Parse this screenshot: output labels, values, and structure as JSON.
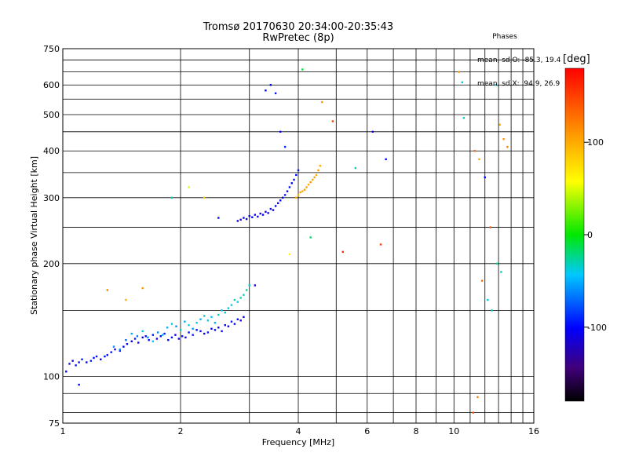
{
  "header": {
    "title_line1": "Tromsø 20170630 20:34:00-20:35:43",
    "title_line2": "RwPretec (8p)"
  },
  "stats": {
    "heading": "Phases",
    "line_o": "mean, sd,O: -85.3, 19.4",
    "line_x": "mean, sd,X:  94.9, 26.9"
  },
  "colorbar": {
    "label": "[deg]",
    "ticks": [
      {
        "value": 100,
        "label": "100"
      },
      {
        "value": 0,
        "label": "0"
      },
      {
        "value": -100,
        "label": "-100"
      }
    ],
    "range": [
      -180,
      180
    ]
  },
  "chart_data": {
    "type": "scatter",
    "xlabel": "Frequency [MHz]",
    "ylabel": "Stationary phase Virtual Height [km]",
    "xscale": "log",
    "yscale": "log",
    "xlim": [
      1,
      16
    ],
    "ylim": [
      75,
      750
    ],
    "x_ticks": [
      1,
      2,
      4,
      6,
      8,
      10,
      16
    ],
    "x_tick_labels": [
      "1",
      "2",
      "4",
      "6",
      "8",
      "10",
      "16"
    ],
    "y_ticks": [
      75,
      100,
      200,
      300,
      400,
      500,
      600,
      750
    ],
    "y_tick_labels": [
      "75",
      "100",
      "200",
      "300",
      "400",
      "500",
      "600",
      "750"
    ],
    "x_grid": [
      1,
      2,
      3,
      4,
      5,
      6,
      7,
      8,
      9,
      10,
      11,
      12,
      13,
      14,
      15,
      16
    ],
    "y_grid": [
      75,
      80,
      90,
      100,
      150,
      200,
      250,
      300,
      350,
      400,
      450,
      500,
      550,
      600,
      650,
      700,
      750
    ],
    "grid": true,
    "color_variable": "phase [deg]",
    "series": [
      {
        "x": [
          1.02,
          1.04,
          1.06,
          1.08,
          1.1,
          1.12,
          1.15,
          1.18,
          1.2,
          1.22,
          1.25,
          1.28,
          1.3,
          1.33,
          1.36,
          1.4,
          1.43,
          1.46,
          1.5,
          1.53,
          1.56,
          1.6,
          1.63,
          1.66,
          1.7,
          1.74,
          1.78,
          1.82,
          1.86,
          1.9,
          1.94,
          1.98,
          2.02,
          2.06,
          2.1,
          2.15,
          2.2,
          2.25,
          2.3,
          2.35,
          2.4,
          2.45,
          2.5,
          2.55,
          2.6,
          2.65,
          2.7,
          2.75,
          2.8,
          2.85,
          2.9
        ],
        "y": [
          103,
          108,
          110,
          107,
          109,
          111,
          109,
          110,
          112,
          113,
          111,
          113,
          114,
          116,
          118,
          117,
          120,
          122,
          124,
          126,
          123,
          127,
          128,
          125,
          129,
          126,
          128,
          130,
          125,
          127,
          129,
          126,
          128,
          127,
          131,
          129,
          133,
          132,
          130,
          131,
          134,
          133,
          135,
          132,
          137,
          136,
          140,
          138,
          142,
          141,
          144
        ],
        "phase": [
          -100,
          -95,
          -105,
          -98,
          -110,
          -92,
          -100,
          -90,
          -104,
          -96,
          -108,
          -99,
          -101,
          -95,
          -112,
          -97,
          -103,
          -100,
          -108,
          -94,
          -99,
          -105,
          -98,
          -102,
          -96,
          -110,
          -100,
          -94,
          -104,
          -98,
          -106,
          -101,
          -96,
          -108,
          -100,
          -93,
          -104,
          -99,
          -107,
          -95,
          -101,
          -98,
          -103,
          -96,
          -108,
          -100,
          -92,
          -104,
          -98,
          -106,
          -100
        ]
      },
      {
        "x": [
          1.35,
          1.4,
          1.45,
          1.5,
          1.55,
          1.6,
          1.65,
          1.7,
          1.75,
          1.8,
          1.85,
          1.9,
          1.95,
          2.0,
          2.05,
          2.1,
          2.15,
          2.2,
          2.25,
          2.3,
          2.35,
          2.4,
          2.45,
          2.5,
          2.55,
          2.6,
          2.65,
          2.7,
          2.75,
          2.8,
          2.85,
          2.9,
          2.95,
          3.0
        ],
        "y": [
          120,
          118,
          125,
          130,
          128,
          132,
          127,
          124,
          131,
          129,
          135,
          138,
          136,
          133,
          140,
          137,
          134,
          139,
          142,
          145,
          141,
          144,
          139,
          146,
          150,
          148,
          152,
          155,
          160,
          158,
          162,
          165,
          170,
          175
        ],
        "phase": [
          -60,
          -55,
          -70,
          -50,
          -65,
          -40,
          -58,
          -45,
          -62,
          -48,
          -52,
          -44,
          -60,
          -35,
          -50,
          -42,
          -56,
          -38,
          -48,
          -30,
          -45,
          -40,
          -52,
          -36,
          -44,
          -32,
          -40,
          -35,
          -28,
          -42,
          -30,
          -38,
          -26,
          -34
        ]
      },
      {
        "x": [
          2.8,
          2.85,
          2.9,
          2.95,
          3.0,
          3.05,
          3.1,
          3.15,
          3.2,
          3.25,
          3.3,
          3.35,
          3.4,
          3.45,
          3.5,
          3.55,
          3.6,
          3.65,
          3.7,
          3.75,
          3.8,
          3.85,
          3.9,
          3.95,
          4.0
        ],
        "y": [
          260,
          262,
          265,
          263,
          268,
          266,
          270,
          267,
          272,
          270,
          275,
          273,
          280,
          278,
          285,
          290,
          295,
          300,
          305,
          312,
          320,
          328,
          335,
          345,
          355
        ],
        "phase": [
          -110,
          -105,
          -112,
          -100,
          -108,
          -104,
          -110,
          -102,
          -106,
          -100,
          -108,
          -104,
          -100,
          -106,
          -102,
          -98,
          -104,
          -100,
          -96,
          -102,
          -98,
          -100,
          -94,
          -98,
          -96
        ]
      },
      {
        "x": [
          3.95,
          4.0,
          4.05,
          4.1,
          4.15,
          4.2,
          4.25,
          4.3,
          4.35,
          4.4,
          4.45,
          4.5,
          4.55
        ],
        "y": [
          300,
          305,
          310,
          312,
          315,
          320,
          325,
          330,
          335,
          340,
          345,
          355,
          365
        ],
        "phase": [
          100,
          95,
          105,
          98,
          110,
          102,
          96,
          108,
          100,
          104,
          98,
          106,
          100
        ]
      },
      {
        "x": [
          1.1,
          1.3,
          1.45,
          1.6,
          1.9,
          2.1,
          2.3,
          2.5,
          3.1,
          3.3,
          3.4,
          3.5,
          3.6,
          3.7,
          3.8,
          4.1,
          4.3,
          4.6,
          4.9,
          5.2,
          5.6,
          6.2,
          6.5,
          6.7
        ],
        "y": [
          95,
          170,
          160,
          172,
          300,
          320,
          300,
          265,
          175,
          580,
          600,
          570,
          450,
          410,
          212,
          660,
          235,
          540,
          480,
          215,
          360,
          450,
          225,
          380
        ],
        "phase": [
          -100,
          120,
          100,
          110,
          -30,
          50,
          80,
          -100,
          -110,
          -100,
          -105,
          -95,
          -100,
          -90,
          60,
          -10,
          -20,
          110,
          150,
          160,
          -30,
          -100,
          150,
          -100
        ]
      },
      {
        "x": [
          10.3,
          10.5,
          10.6,
          11.2,
          11.5,
          11.8,
          12.2,
          12.5,
          12.8,
          13.1,
          13.4,
          13.7,
          11.3,
          11.6,
          12.0,
          12.4,
          12.9,
          13.2
        ],
        "y": [
          650,
          610,
          490,
          80,
          88,
          180,
          160,
          150,
          600,
          470,
          430,
          410,
          400,
          380,
          340,
          250,
          200,
          190
        ],
        "phase": [
          110,
          -40,
          -30,
          140,
          120,
          130,
          -40,
          -30,
          -40,
          100,
          110,
          120,
          130,
          100,
          -100,
          140,
          -20,
          -30
        ]
      }
    ]
  }
}
